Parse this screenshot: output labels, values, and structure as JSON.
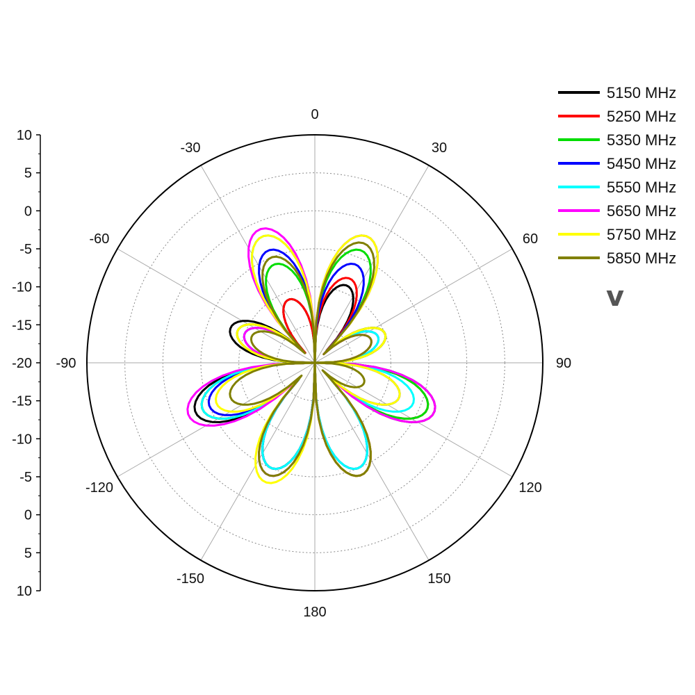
{
  "chart_data": {
    "type": "polar-line",
    "polarization_label": "v",
    "radial_axis": {
      "ticks": [
        10,
        5,
        0,
        -5,
        -10,
        -15,
        -20,
        -15,
        -10,
        -5,
        0,
        5,
        10
      ],
      "range": [
        -20,
        10
      ]
    },
    "angle_labels": [
      "0",
      "30",
      "60",
      "90",
      "120",
      "150",
      "180",
      "-150",
      "-120",
      "-90",
      "-60",
      "-30"
    ],
    "grid": true,
    "legend_position": "top-right",
    "series": [
      {
        "name": "5150 MHz",
        "color": "#000000"
      },
      {
        "name": "5250 MHz",
        "color": "#ff0000"
      },
      {
        "name": "5350 MHz",
        "color": "#00dd00"
      },
      {
        "name": "5450 MHz",
        "color": "#0000ff"
      },
      {
        "name": "5550 MHz",
        "color": "#00ffff"
      },
      {
        "name": "5650 MHz",
        "color": "#ff00ff"
      },
      {
        "name": "5750 MHz",
        "color": "#ffff00"
      },
      {
        "name": "5850 MHz",
        "color": "#808000"
      }
    ],
    "lobe_angles": [
      -165,
      -130,
      -100,
      -60,
      -30,
      20,
      60,
      95,
      130,
      160
    ],
    "lobe_values": [
      [
        -5,
        -15,
        -3,
        -8,
        -11,
        -9,
        -10,
        -3,
        -8,
        -4
      ],
      [
        -5,
        -13,
        -4,
        -9,
        -11,
        -8,
        -10,
        -4,
        -9,
        -4
      ],
      [
        -5,
        -12,
        -4,
        -9,
        -6,
        -4,
        -10,
        -4,
        -9,
        -5
      ],
      [
        -5,
        -12,
        -5,
        -10,
        -4,
        -6,
        -11,
        -8,
        -9,
        -5
      ],
      [
        -5,
        -12,
        -4,
        -10,
        -2,
        -2,
        -11,
        -6,
        -9,
        -5
      ],
      [
        -4,
        -10,
        -2,
        -10,
        -1,
        -2,
        -12,
        -3,
        -8,
        -4
      ],
      [
        -3,
        -10,
        -6,
        -9,
        -2,
        -2,
        -10,
        -8,
        -8,
        -4
      ],
      [
        -4,
        -9,
        -8,
        -11,
        -5,
        -3,
        -12,
        -13,
        -10,
        -4
      ]
    ]
  }
}
